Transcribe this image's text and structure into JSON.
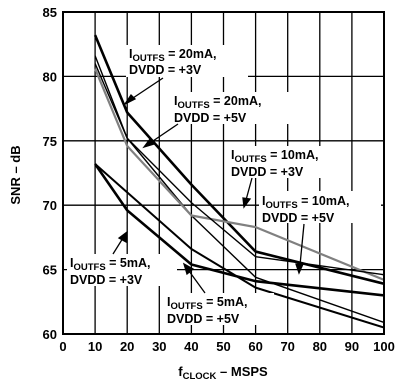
{
  "chart_data": {
    "type": "line",
    "xlabel": {
      "main": "f",
      "sub": "CLOCK",
      "rest": " – MSPS"
    },
    "ylabel": "SNR – dB",
    "xlim": [
      0,
      100
    ],
    "ylim": [
      60,
      85
    ],
    "x_ticks": [
      0,
      10,
      20,
      30,
      40,
      50,
      60,
      70,
      80,
      90,
      100
    ],
    "y_ticks": [
      60,
      65,
      70,
      75,
      80,
      85
    ],
    "grid": true,
    "series": [
      {
        "id": "s20_3",
        "x": [
          10,
          20,
          40,
          60,
          100
        ],
        "y": [
          83.2,
          77.2,
          71.6,
          66.4,
          63.9
        ],
        "color": "#000000",
        "width": 2.6
      },
      {
        "id": "s20_5",
        "x": [
          10,
          20,
          40,
          60,
          100
        ],
        "y": [
          81.6,
          75.2,
          69.2,
          64.4,
          60.9
        ],
        "color": "#000000",
        "width": 1.4
      },
      {
        "id": "s10_3",
        "x": [
          10,
          20,
          40,
          60,
          100
        ],
        "y": [
          80.6,
          74.6,
          69.2,
          68.3,
          64.2
        ],
        "color": "#808080",
        "width": 2.2
      },
      {
        "id": "s10_5",
        "x": [
          10,
          20,
          40,
          60,
          100
        ],
        "y": [
          81.0,
          75.2,
          70.2,
          66.0,
          64.6
        ],
        "color": "#000000",
        "width": 1.4
      },
      {
        "id": "s5_3",
        "x": [
          10,
          20,
          40,
          60,
          100
        ],
        "y": [
          73.2,
          69.6,
          65.4,
          64.1,
          63.0
        ],
        "color": "#000000",
        "width": 2.6
      },
      {
        "id": "s5_5",
        "x": [
          10,
          20,
          40,
          60,
          100
        ],
        "y": [
          73.2,
          71.0,
          66.6,
          63.6,
          60.5
        ],
        "color": "#000000",
        "width": 2.0
      }
    ],
    "annotations": [
      {
        "line1_main": "I",
        "line1_sub": "OUTFS",
        "line1_rest": " = 20mA,",
        "line2": "DVDD = +3V"
      },
      {
        "line1_main": "I",
        "line1_sub": "OUTFS",
        "line1_rest": " = 20mA,",
        "line2": "DVDD = +5V"
      },
      {
        "line1_main": "I",
        "line1_sub": "OUTFS",
        "line1_rest": " = 10mA,",
        "line2": "DVDD = +3V"
      },
      {
        "line1_main": "I",
        "line1_sub": "OUTFS",
        "line1_rest": " = 10mA,",
        "line2": "DVDD = +5V"
      },
      {
        "line1_main": "I",
        "line1_sub": "OUTFS",
        "line1_rest": " = 5mA,",
        "line2": "DVDD = +3V"
      },
      {
        "line1_main": "I",
        "line1_sub": "OUTFS",
        "line1_rest": " = 5mA,",
        "line2": "DVDD = +5V"
      }
    ]
  }
}
